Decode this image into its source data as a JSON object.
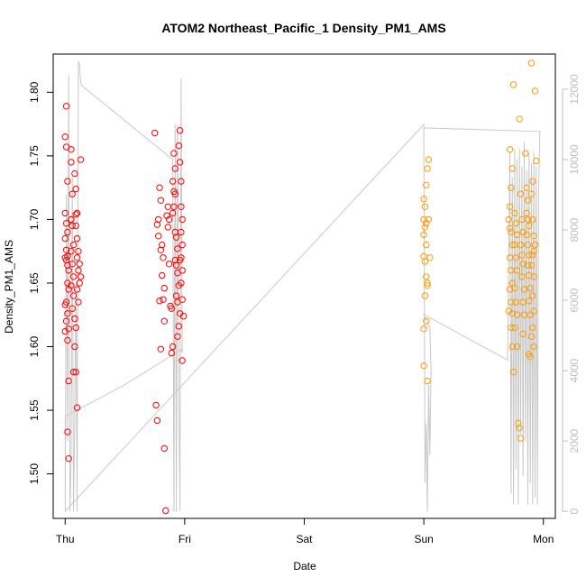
{
  "chart_data": {
    "type": "scatter",
    "title": "ATOM2 Northeast_Pacific_1 Density_PM1_AMS",
    "xlabel": "Date",
    "ylabel": "Density_PM1_AMS",
    "x_axis": {
      "type": "date",
      "ticks": [
        {
          "label": "Thu",
          "value": 0
        },
        {
          "label": "Fri",
          "value": 1
        },
        {
          "label": "Sat",
          "value": 2
        },
        {
          "label": "Sun",
          "value": 3
        },
        {
          "label": "Mon",
          "value": 4
        }
      ],
      "range": [
        -0.1,
        4.1
      ]
    },
    "y_left": {
      "range": [
        1.465,
        1.83
      ],
      "ticks": [
        1.5,
        1.55,
        1.6,
        1.65,
        1.7,
        1.75,
        1.8
      ],
      "tick_labels": [
        "1.50",
        "1.55",
        "1.60",
        "1.65",
        "1.70",
        "1.75",
        "1.80"
      ]
    },
    "y_right": {
      "range": [
        -200,
        13000
      ],
      "ticks": [
        0,
        2000,
        4000,
        6000,
        8000,
        10000,
        12000
      ],
      "tick_labels": [
        "0",
        "2000",
        "4000",
        "6000",
        "8000",
        "10000",
        "12000"
      ],
      "color": "#bdbdbd"
    },
    "grid": false,
    "colors": {
      "red_series": "#ff0000",
      "orange_series": "#ff9a00",
      "trace": "#c8c8c8"
    },
    "series": [
      {
        "color": "#ff0000",
        "points": [
          [
            0.01,
            1.789
          ],
          [
            0.0,
            1.765
          ],
          [
            0.01,
            1.757
          ],
          [
            0.02,
            1.73
          ],
          [
            0.0,
            1.705
          ],
          [
            0.01,
            1.697
          ],
          [
            0.02,
            1.69
          ],
          [
            0.0,
            1.685
          ],
          [
            0.01,
            1.676
          ],
          [
            0.02,
            1.671
          ],
          [
            0.0,
            1.67
          ],
          [
            0.01,
            1.668
          ],
          [
            0.02,
            1.664
          ],
          [
            0.03,
            1.66
          ],
          [
            0.02,
            1.65
          ],
          [
            0.03,
            1.645
          ],
          [
            0.01,
            1.635
          ],
          [
            0.0,
            1.633
          ],
          [
            0.02,
            1.626
          ],
          [
            0.01,
            1.62
          ],
          [
            0.03,
            1.614
          ],
          [
            0.0,
            1.612
          ],
          [
            0.02,
            1.605
          ],
          [
            0.03,
            1.573
          ],
          [
            0.02,
            1.533
          ],
          [
            0.03,
            1.512
          ],
          [
            0.05,
            1.755
          ],
          [
            0.05,
            1.745
          ],
          [
            0.06,
            1.72
          ],
          [
            0.05,
            1.7
          ],
          [
            0.06,
            1.695
          ],
          [
            0.07,
            1.68
          ],
          [
            0.05,
            1.675
          ],
          [
            0.06,
            1.665
          ],
          [
            0.07,
            1.655
          ],
          [
            0.05,
            1.648
          ],
          [
            0.07,
            1.64
          ],
          [
            0.06,
            1.63
          ],
          [
            0.08,
            1.622
          ],
          [
            0.09,
            1.704
          ],
          [
            0.08,
            1.736
          ],
          [
            0.09,
            1.724
          ],
          [
            0.1,
            1.705
          ],
          [
            0.09,
            1.695
          ],
          [
            0.1,
            1.685
          ],
          [
            0.11,
            1.675
          ],
          [
            0.1,
            1.67
          ],
          [
            0.11,
            1.66
          ],
          [
            0.12,
            1.65
          ],
          [
            0.1,
            1.645
          ],
          [
            0.11,
            1.635
          ],
          [
            0.09,
            1.615
          ],
          [
            0.08,
            1.6
          ],
          [
            0.09,
            1.58
          ],
          [
            0.1,
            1.552
          ],
          [
            0.13,
            1.747
          ],
          [
            0.12,
            1.665
          ],
          [
            0.13,
            1.655
          ],
          [
            0.07,
            1.58
          ],
          [
            0.05,
            1.7
          ],
          [
            0.75,
            1.768
          ],
          [
            0.79,
            1.725
          ],
          [
            0.8,
            1.715
          ],
          [
            0.78,
            1.7
          ],
          [
            0.77,
            1.696
          ],
          [
            0.78,
            1.687
          ],
          [
            0.81,
            1.68
          ],
          [
            0.8,
            1.676
          ],
          [
            0.82,
            1.67
          ],
          [
            0.81,
            1.656
          ],
          [
            0.83,
            1.646
          ],
          [
            0.79,
            1.636
          ],
          [
            0.82,
            1.637
          ],
          [
            0.83,
            1.62
          ],
          [
            0.8,
            1.598
          ],
          [
            0.76,
            1.554
          ],
          [
            0.77,
            1.542
          ],
          [
            0.83,
            1.52
          ],
          [
            0.84,
            1.471
          ],
          [
            0.85,
            1.703
          ],
          [
            0.86,
            1.71
          ],
          [
            0.87,
            1.7
          ],
          [
            0.86,
            1.694
          ],
          [
            0.87,
            1.665
          ],
          [
            0.88,
            1.632
          ],
          [
            0.89,
            1.63
          ],
          [
            0.89,
            1.595
          ],
          [
            0.9,
            1.6
          ],
          [
            0.91,
            1.752
          ],
          [
            0.92,
            1.74
          ],
          [
            0.9,
            1.73
          ],
          [
            0.91,
            1.722
          ],
          [
            0.92,
            1.72
          ],
          [
            0.91,
            1.71
          ],
          [
            0.9,
            1.705
          ],
          [
            0.92,
            1.69
          ],
          [
            0.93,
            1.686
          ],
          [
            0.94,
            1.677
          ],
          [
            0.92,
            1.668
          ],
          [
            0.93,
            1.664
          ],
          [
            0.94,
            1.658
          ],
          [
            0.95,
            1.648
          ],
          [
            0.93,
            1.64
          ],
          [
            0.94,
            1.635
          ],
          [
            0.96,
            1.626
          ],
          [
            0.95,
            1.616
          ],
          [
            0.94,
            1.608
          ],
          [
            0.96,
            1.77
          ],
          [
            0.95,
            1.758
          ],
          [
            0.96,
            1.745
          ],
          [
            0.97,
            1.73
          ],
          [
            0.97,
            1.71
          ],
          [
            0.98,
            1.7
          ],
          [
            0.97,
            1.69
          ],
          [
            0.98,
            1.68
          ],
          [
            0.97,
            1.67
          ],
          [
            0.96,
            1.668
          ],
          [
            0.98,
            1.66
          ],
          [
            0.97,
            1.65
          ],
          [
            0.98,
            1.637
          ],
          [
            0.99,
            1.624
          ],
          [
            0.98,
            1.589
          ]
        ]
      },
      {
        "color": "#ff9a00",
        "points": [
          [
            3.0,
            1.716
          ],
          [
            3.01,
            1.71
          ],
          [
            3.0,
            1.7
          ],
          [
            3.02,
            1.697
          ],
          [
            3.01,
            1.694
          ],
          [
            3.0,
            1.688
          ],
          [
            3.02,
            1.68
          ],
          [
            3.0,
            1.671
          ],
          [
            3.01,
            1.667
          ],
          [
            3.02,
            1.655
          ],
          [
            3.03,
            1.648
          ],
          [
            3.01,
            1.64
          ],
          [
            3.0,
            1.614
          ],
          [
            3.02,
            1.62
          ],
          [
            3.0,
            1.585
          ],
          [
            3.03,
            1.573
          ],
          [
            3.02,
            1.727
          ],
          [
            3.03,
            1.74
          ],
          [
            3.04,
            1.747
          ],
          [
            3.04,
            1.7
          ],
          [
            3.05,
            1.67
          ],
          [
            3.03,
            1.65
          ],
          [
            3.72,
            1.755
          ],
          [
            3.74,
            1.74
          ],
          [
            3.73,
            1.725
          ],
          [
            3.72,
            1.71
          ],
          [
            3.71,
            1.7
          ],
          [
            3.72,
            1.693
          ],
          [
            3.73,
            1.69
          ],
          [
            3.74,
            1.68
          ],
          [
            3.72,
            1.67
          ],
          [
            3.73,
            1.66
          ],
          [
            3.74,
            1.65
          ],
          [
            3.72,
            1.645
          ],
          [
            3.73,
            1.635
          ],
          [
            3.71,
            1.628
          ],
          [
            3.74,
            1.626
          ],
          [
            3.73,
            1.615
          ],
          [
            3.74,
            1.6
          ],
          [
            3.75,
            1.58
          ],
          [
            3.75,
            1.806
          ],
          [
            3.76,
            1.705
          ],
          [
            3.77,
            1.697
          ],
          [
            3.78,
            1.688
          ],
          [
            3.76,
            1.68
          ],
          [
            3.77,
            1.67
          ],
          [
            3.78,
            1.66
          ],
          [
            3.76,
            1.646
          ],
          [
            3.77,
            1.635
          ],
          [
            3.78,
            1.625
          ],
          [
            3.76,
            1.615
          ],
          [
            3.78,
            1.6
          ],
          [
            3.79,
            1.54
          ],
          [
            3.8,
            1.536
          ],
          [
            3.81,
            1.528
          ],
          [
            3.8,
            1.779
          ],
          [
            3.81,
            1.72
          ],
          [
            3.82,
            1.7
          ],
          [
            3.83,
            1.69
          ],
          [
            3.81,
            1.68
          ],
          [
            3.82,
            1.672
          ],
          [
            3.83,
            1.665
          ],
          [
            3.82,
            1.655
          ],
          [
            3.84,
            1.645
          ],
          [
            3.83,
            1.635
          ],
          [
            3.84,
            1.625
          ],
          [
            3.83,
            1.61
          ],
          [
            3.85,
            1.752
          ],
          [
            3.86,
            1.725
          ],
          [
            3.87,
            1.715
          ],
          [
            3.86,
            1.705
          ],
          [
            3.87,
            1.7
          ],
          [
            3.88,
            1.695
          ],
          [
            3.86,
            1.688
          ],
          [
            3.87,
            1.68
          ],
          [
            3.88,
            1.672
          ],
          [
            3.87,
            1.664
          ],
          [
            3.88,
            1.656
          ],
          [
            3.89,
            1.646
          ],
          [
            3.88,
            1.636
          ],
          [
            3.89,
            1.625
          ],
          [
            3.9,
            1.608
          ],
          [
            3.88,
            1.594
          ],
          [
            3.89,
            1.592
          ],
          [
            3.9,
            1.823
          ],
          [
            3.91,
            1.73
          ],
          [
            3.9,
            1.72
          ],
          [
            3.91,
            1.7
          ],
          [
            3.92,
            1.687
          ],
          [
            3.91,
            1.672
          ],
          [
            3.9,
            1.664
          ],
          [
            3.92,
            1.655
          ],
          [
            3.91,
            1.64
          ],
          [
            3.92,
            1.628
          ],
          [
            3.91,
            1.615
          ],
          [
            3.92,
            1.6
          ],
          [
            3.93,
            1.801
          ],
          [
            3.94,
            1.746
          ],
          [
            3.93,
            1.68
          ],
          [
            3.92,
            1.675
          ]
        ]
      }
    ],
    "trace": {
      "axis": "right",
      "color": "#c8c8c8",
      "points": [
        [
          0.0,
          0
        ],
        [
          0.01,
          9000
        ],
        [
          0.02,
          2000
        ],
        [
          0.03,
          12400
        ],
        [
          0.04,
          0
        ],
        [
          0.05,
          1500
        ],
        [
          0.06,
          9500
        ],
        [
          0.07,
          0
        ],
        [
          0.08,
          2500
        ],
        [
          0.09,
          6500
        ],
        [
          0.1,
          0
        ],
        [
          0.11,
          12800
        ],
        [
          0.12,
          12700
        ],
        [
          0.13,
          12200
        ],
        [
          0.14,
          12100
        ],
        [
          0.9,
          10000
        ],
        [
          0.91,
          0
        ],
        [
          0.92,
          11000
        ],
        [
          0.93,
          0
        ],
        [
          0.94,
          11000
        ],
        [
          0.95,
          3500
        ],
        [
          0.96,
          0
        ],
        [
          0.97,
          12300
        ],
        [
          0.98,
          4500
        ],
        [
          0.97,
          4600
        ],
        [
          0.5,
          3600
        ],
        [
          0.0,
          2700
        ],
        [
          0.0,
          0
        ],
        [
          3.0,
          11000
        ],
        [
          3.01,
          800
        ],
        [
          3.02,
          2500
        ],
        [
          3.03,
          0
        ],
        [
          3.04,
          3600
        ],
        [
          3.05,
          1600
        ],
        [
          3.06,
          4000
        ],
        [
          3.05,
          5200
        ],
        [
          3.0,
          5600
        ],
        [
          3.7,
          4300
        ],
        [
          3.72,
          10200
        ],
        [
          3.73,
          500
        ],
        [
          3.74,
          9500
        ],
        [
          3.75,
          200
        ],
        [
          3.76,
          10300
        ],
        [
          3.77,
          1200
        ],
        [
          3.78,
          10000
        ],
        [
          3.79,
          200
        ],
        [
          3.8,
          10300
        ],
        [
          3.81,
          2200
        ],
        [
          3.82,
          9800
        ],
        [
          3.83,
          1000
        ],
        [
          3.84,
          10500
        ],
        [
          3.85,
          2000
        ],
        [
          3.86,
          9700
        ],
        [
          3.87,
          200
        ],
        [
          3.88,
          10200
        ],
        [
          3.89,
          800
        ],
        [
          3.9,
          9900
        ],
        [
          3.91,
          200
        ],
        [
          3.92,
          10200
        ],
        [
          3.93,
          400
        ],
        [
          3.94,
          9800
        ],
        [
          3.95,
          200
        ],
        [
          3.96,
          9000
        ],
        [
          3.97,
          10800
        ],
        [
          3.0,
          10900
        ]
      ]
    }
  }
}
